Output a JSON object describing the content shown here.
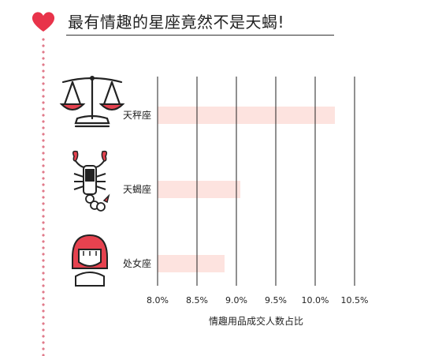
{
  "title": "最有情趣的星座竟然不是天蝎!",
  "chart_data": {
    "type": "bar",
    "orientation": "horizontal",
    "categories": [
      "天秤座",
      "天蝎座",
      "处女座"
    ],
    "values": [
      10.25,
      9.05,
      8.85
    ],
    "xlabel": "情趣用品成交人数占比",
    "xlim": [
      8.0,
      10.5
    ],
    "ticks": [
      "8.0%",
      "8.5%",
      "9.0%",
      "9.5%",
      "10.0%",
      "10.5%"
    ],
    "grid": true,
    "bar_color": "#fde3df"
  },
  "icons": [
    "libra-scale-icon",
    "scorpion-icon",
    "virgo-girl-icon"
  ],
  "colors": {
    "accent": "#e6424f",
    "heart": "#e8334a",
    "bar": "#fde3df"
  }
}
